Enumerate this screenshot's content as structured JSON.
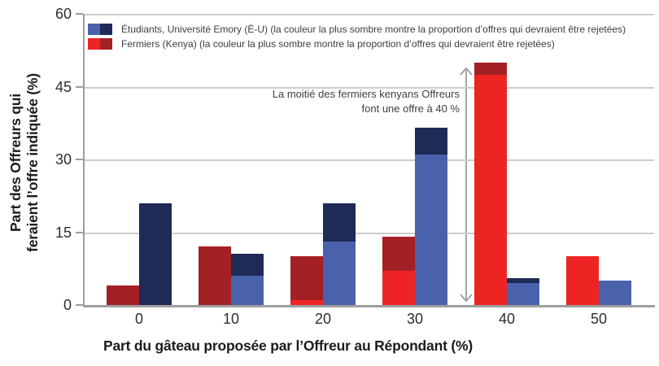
{
  "figure": {
    "legend": {
      "items": [
        {
          "id": "etudiants",
          "label": "Étudiants, Université Emory (É-U)",
          "note": "(la couleur la plus sombre montre la proportion d’offres qui devraient être rejetées)",
          "color_light": "#4A61AC",
          "color_dark": "#1F2A56"
        },
        {
          "id": "fermiers",
          "label": "Fermiers (Kenya)",
          "note": "(la couleur la plus sombre montre la proportion d’offres qui devraient être rejetées)",
          "color_light": "#EE2424",
          "color_dark": "#A32025"
        }
      ]
    },
    "annotation": {
      "line1": "La moitié des fermiers kenyans Offreurs",
      "line2": "font une offre à 40 %"
    }
  },
  "chart_data": {
    "type": "bar",
    "variant": "grouped-stacked",
    "title": "",
    "xlabel": "Part du gâteau proposée par l’Offreur au Répondant (%)",
    "ylabel": "Part des Offreurs qui feraient l’offre indiquée (%)",
    "ylabel_lines": [
      "Part des Offreurs qui",
      "feraient l’offre indiquée (%)"
    ],
    "categories": [
      0,
      10,
      20,
      30,
      40,
      50
    ],
    "yticks": [
      0,
      15,
      30,
      45,
      60
    ],
    "ylim": [
      0,
      60
    ],
    "grid": "horizontal",
    "legend_position": "top-left-inside",
    "segment_meaning": {
      "accept": "offres (couleur claire)",
      "reject": "la couleur la plus sombre montre la proportion d’offres qui devraient être rejetées"
    },
    "series": [
      {
        "id": "fermiers",
        "name": "Fermiers (Kenya)",
        "bar_position": "left",
        "accept_color": "#EE2424",
        "reject_color": "#A32025",
        "accept_values": [
          0,
          0,
          1,
          7,
          47.5,
          10
        ],
        "reject_values": [
          4,
          12,
          9,
          7,
          2.5,
          0
        ],
        "totals": [
          4,
          12,
          10,
          14,
          50,
          10
        ]
      },
      {
        "id": "etudiants",
        "name": "Étudiants, Université Emory (É-U)",
        "bar_position": "right",
        "accept_color": "#4A61AC",
        "reject_color": "#1F2A56",
        "accept_values": [
          0,
          6,
          13,
          31,
          4.5,
          5
        ],
        "reject_values": [
          21,
          4.5,
          8,
          5.5,
          1,
          0
        ],
        "totals": [
          21,
          10.5,
          21,
          36.5,
          5.5,
          5
        ]
      }
    ],
    "annotation": "La moitié des fermiers kenyans Offreurs font une offre à 40 %"
  }
}
